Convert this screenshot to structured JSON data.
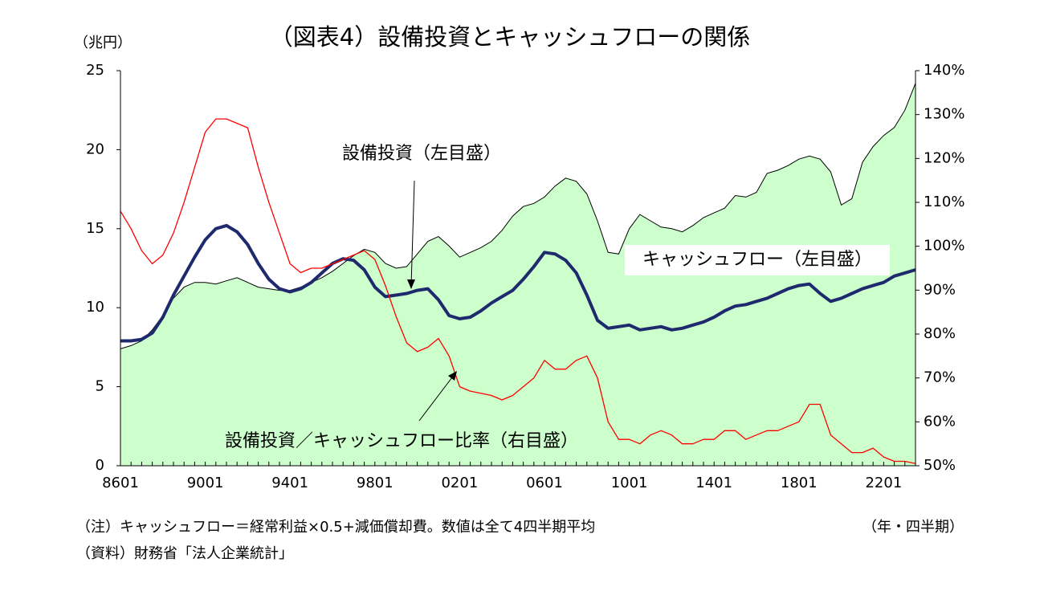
{
  "chart_data": {
    "type": "area-line",
    "title": "（図表4）設備投資とキャッシュフローの関係",
    "y_unit": "（兆円）",
    "x_unit": "（年・四半期）",
    "notes": [
      "（注）キャッシュフロー＝経常利益×0.5+減価償却費。数値は全て4四半期平均",
      "（資料）財務省「法人企業統計」"
    ],
    "categories": [
      "8601",
      null,
      null,
      null,
      null,
      null,
      null,
      null,
      "9001",
      null,
      null,
      null,
      null,
      null,
      null,
      null,
      "9401",
      null,
      null,
      null,
      null,
      null,
      null,
      null,
      "9801",
      null,
      null,
      null,
      null,
      null,
      null,
      null,
      "0201",
      null,
      null,
      null,
      null,
      null,
      null,
      null,
      "0601",
      null,
      null,
      null,
      null,
      null,
      null,
      null,
      "1001",
      null,
      null,
      null,
      null,
      null,
      null,
      null,
      "1401",
      null,
      null,
      null,
      null,
      null,
      null,
      null,
      "1801",
      null,
      null,
      null,
      null,
      null,
      null,
      null,
      "2201",
      null,
      null,
      null
    ],
    "ylim": [
      0,
      25
    ],
    "yticks": [
      0,
      5,
      10,
      15,
      20,
      25
    ],
    "y2lim": [
      50,
      140
    ],
    "y2ticks": [
      {
        "value": 50,
        "label": "50%"
      },
      {
        "value": 60,
        "label": "60%"
      },
      {
        "value": 70,
        "label": "70%"
      },
      {
        "value": 80,
        "label": "80%"
      },
      {
        "value": 90,
        "label": "90%"
      },
      {
        "value": 100,
        "label": "100%"
      },
      {
        "value": 110,
        "label": "110%"
      },
      {
        "value": 120,
        "label": "120%"
      },
      {
        "value": 130,
        "label": "130%"
      },
      {
        "value": 140,
        "label": "140%"
      }
    ],
    "series": [
      {
        "name": "設備投資（左目盛）",
        "kind": "area",
        "color": "#ccffcc",
        "line_color": "#000000",
        "values": [
          7.4,
          7.6,
          7.9,
          8.6,
          9.5,
          10.6,
          11.3,
          11.6,
          11.6,
          11.5,
          11.7,
          11.9,
          11.6,
          11.3,
          11.2,
          11.1,
          11.1,
          11.3,
          11.6,
          11.9,
          12.3,
          12.8,
          13.3,
          13.7,
          13.5,
          12.8,
          12.5,
          12.6,
          13.4,
          14.2,
          14.5,
          13.9,
          13.2,
          13.5,
          13.8,
          14.2,
          14.9,
          15.8,
          16.4,
          16.6,
          17.0,
          17.7,
          18.2,
          18.0,
          17.2,
          15.5,
          13.5,
          13.4,
          15.0,
          15.9,
          15.5,
          15.1,
          15.0,
          14.8,
          15.2,
          15.7,
          16.0,
          16.3,
          17.1,
          17.0,
          17.3,
          18.5,
          18.7,
          19.0,
          19.4,
          19.6,
          19.4,
          18.6,
          16.5,
          16.9,
          19.2,
          20.2,
          20.9,
          21.4,
          22.5,
          24.2
        ]
      },
      {
        "name": "キャッシュフロー（左目盛）",
        "kind": "line",
        "color": "#1f2a6e",
        "values": [
          7.9,
          7.9,
          8.0,
          8.4,
          9.4,
          10.8,
          12.0,
          13.2,
          14.3,
          15.0,
          15.2,
          14.8,
          14.0,
          12.8,
          11.8,
          11.2,
          11.0,
          11.2,
          11.6,
          12.2,
          12.8,
          13.1,
          13.0,
          12.4,
          11.3,
          10.7,
          10.8,
          10.9,
          11.1,
          11.2,
          10.5,
          9.5,
          9.3,
          9.4,
          9.8,
          10.3,
          10.7,
          11.1,
          11.8,
          12.6,
          13.5,
          13.4,
          13.0,
          12.2,
          10.8,
          9.2,
          8.7,
          8.8,
          8.9,
          8.6,
          8.7,
          8.8,
          8.6,
          8.7,
          8.9,
          9.1,
          9.4,
          9.8,
          10.1,
          10.2,
          10.4,
          10.6,
          10.9,
          11.2,
          11.4,
          11.5,
          10.9,
          10.4,
          10.6,
          10.9,
          11.2,
          11.4,
          11.6,
          12.0,
          12.2,
          12.4
        ]
      },
      {
        "name": "設備投資／キャッシュフロー比率（右目盛）",
        "kind": "line",
        "axis": "y2",
        "color": "#ff0000",
        "values": [
          108,
          104,
          99,
          96,
          98,
          103,
          110,
          118,
          126,
          129,
          129,
          128,
          127,
          118,
          110,
          103,
          96,
          94,
          95,
          95,
          96,
          97,
          98,
          99,
          97,
          91,
          84,
          78,
          76,
          77,
          79,
          75,
          68,
          67,
          66.5,
          66,
          65,
          66,
          68,
          70,
          74,
          72,
          72,
          74,
          75,
          70,
          60,
          56,
          56,
          55,
          57,
          58,
          57,
          55,
          55,
          56,
          56,
          58,
          58,
          56,
          57,
          58,
          58,
          59,
          60,
          64,
          64,
          57,
          55,
          53,
          53,
          54,
          52,
          51,
          51,
          50.5
        ]
      }
    ]
  }
}
